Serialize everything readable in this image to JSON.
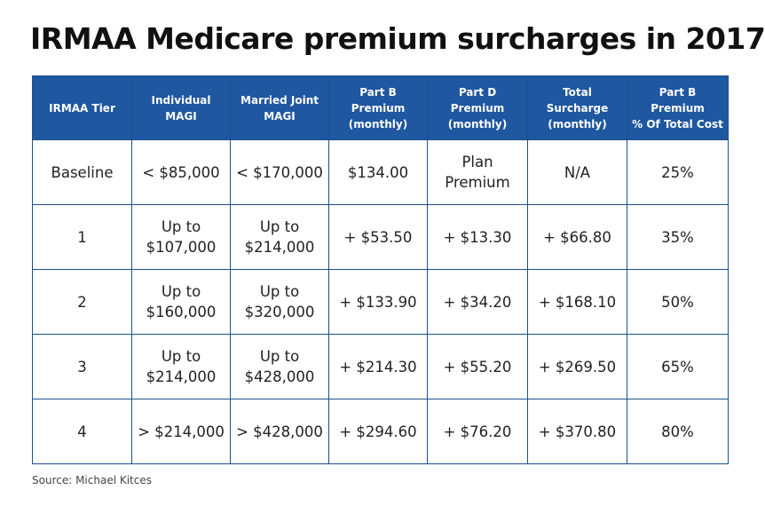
{
  "header": {
    "title": "IRMAA Medicare premium surcharges in 2017"
  },
  "table": {
    "columns": [
      [
        "IRMAA Tier"
      ],
      [
        "Individual",
        "MAGI"
      ],
      [
        "Married Joint",
        "MAGI"
      ],
      [
        "Part B",
        "Premium",
        "(monthly)"
      ],
      [
        "Part D",
        "Premium",
        "(monthly)"
      ],
      [
        "Total",
        "Surcharge",
        "(monthly)"
      ],
      [
        "Part B",
        "Premium",
        "% Of Total Cost"
      ]
    ],
    "rows": [
      [
        [
          "Baseline"
        ],
        [
          "< $85,000"
        ],
        [
          "< $170,000"
        ],
        [
          "$134.00"
        ],
        [
          "Plan",
          "Premium"
        ],
        [
          "N/A"
        ],
        [
          "25%"
        ]
      ],
      [
        [
          "1"
        ],
        [
          "Up to",
          "$107,000"
        ],
        [
          "Up to",
          "$214,000"
        ],
        [
          "+ $53.50"
        ],
        [
          "+ $13.30"
        ],
        [
          "+ $66.80"
        ],
        [
          "35%"
        ]
      ],
      [
        [
          "2"
        ],
        [
          "Up to",
          "$160,000"
        ],
        [
          "Up to",
          "$320,000"
        ],
        [
          "+ $133.90"
        ],
        [
          "+ $34.20"
        ],
        [
          "+ $168.10"
        ],
        [
          "50%"
        ]
      ],
      [
        [
          "3"
        ],
        [
          "Up to",
          "$214,000"
        ],
        [
          "Up to",
          "$428,000"
        ],
        [
          "+ $214.30"
        ],
        [
          "+ $55.20"
        ],
        [
          "+ $269.50"
        ],
        [
          "65%"
        ]
      ],
      [
        [
          "4"
        ],
        [
          "> $214,000"
        ],
        [
          "> $428,000"
        ],
        [
          "+ $294.60"
        ],
        [
          "+ $76.20"
        ],
        [
          "+ $370.80"
        ],
        [
          "80%"
        ]
      ]
    ]
  },
  "footer": {
    "source": "Source: Michael Kitces"
  }
}
